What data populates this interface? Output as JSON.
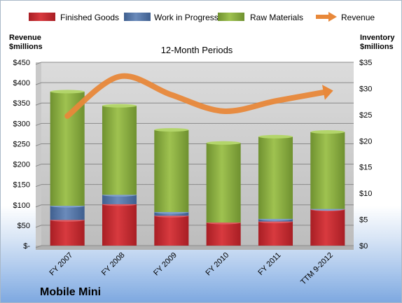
{
  "chart_data": {
    "type": "bar",
    "title": "12-Month Periods",
    "company": "Mobile Mini",
    "categories": [
      "FY 2007",
      "FY 2008",
      "FY 2009",
      "FY 2010",
      "FY 2011",
      "TTM 9-2012"
    ],
    "left_axis": {
      "title_line1": "Revenue",
      "title_line2": "$millions",
      "range": [
        0,
        450
      ],
      "ticks": [
        {
          "value": 0,
          "label": "$-"
        },
        {
          "value": 50,
          "label": "$50"
        },
        {
          "value": 100,
          "label": "$100"
        },
        {
          "value": 150,
          "label": "$150"
        },
        {
          "value": 200,
          "label": "$200"
        },
        {
          "value": 250,
          "label": "$250"
        },
        {
          "value": 300,
          "label": "$300"
        },
        {
          "value": 350,
          "label": "$350"
        },
        {
          "value": 400,
          "label": "$400"
        },
        {
          "value": 450,
          "label": "$450"
        }
      ]
    },
    "right_axis": {
      "title_line1": "Inventory",
      "title_line2": "$millions",
      "range": [
        0,
        35
      ],
      "ticks": [
        {
          "value": 0,
          "label": "$0"
        },
        {
          "value": 5,
          "label": "$5"
        },
        {
          "value": 10,
          "label": "$10"
        },
        {
          "value": 15,
          "label": "$15"
        },
        {
          "value": 20,
          "label": "$20"
        },
        {
          "value": 25,
          "label": "$25"
        },
        {
          "value": 30,
          "label": "$30"
        },
        {
          "value": 35,
          "label": "$35"
        }
      ]
    },
    "grid": true,
    "legend_position": "top",
    "series": [
      {
        "name": "Finished Goods",
        "type": "bar",
        "axis": "right",
        "color": "#c0272d",
        "values": [
          4.9,
          7.9,
          5.7,
          4.4,
          4.6,
          6.9
        ]
      },
      {
        "name": "Work in Progress",
        "type": "bar",
        "axis": "right",
        "color": "#4f6f9f",
        "values": [
          2.7,
          1.8,
          0.7,
          0.0,
          0.5,
          0.1
        ]
      },
      {
        "name": "Raw Materials",
        "type": "bar",
        "axis": "right",
        "color": "#8aae3f",
        "values": [
          21.8,
          17.0,
          15.7,
          15.2,
          15.7,
          14.7
        ]
      },
      {
        "name": "Revenue",
        "type": "line",
        "axis": "left",
        "color": "#e8883a",
        "values": [
          318,
          415,
          370,
          330,
          355,
          378
        ]
      }
    ]
  }
}
